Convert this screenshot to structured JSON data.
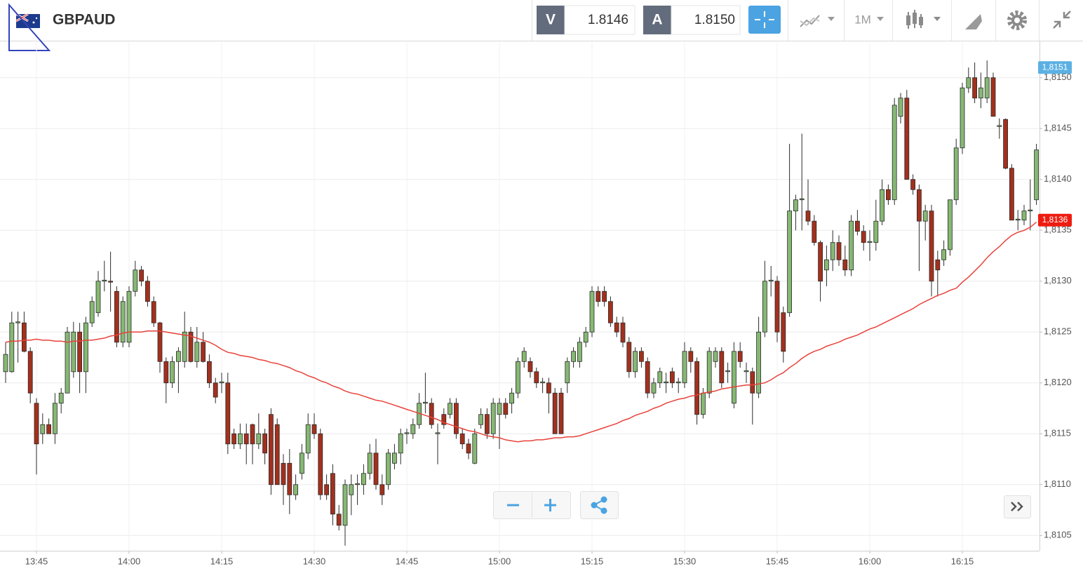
{
  "toolbar": {
    "symbol": "GBPAUD",
    "bid_label": "V",
    "bid": "1.8146",
    "ask_label": "A",
    "ask": "1.8150",
    "timeframe": "1M"
  },
  "chart_data": {
    "type": "candlestick",
    "up_color": "#86b873",
    "down_color": "#a3301d",
    "outline_color": "#2b2b2b",
    "grid": true,
    "ylim": [
      1.81035,
      1.81535
    ],
    "yticks": [
      {
        "value": 1.8105,
        "label": "1,8105"
      },
      {
        "value": 1.811,
        "label": "1,8110"
      },
      {
        "value": 1.8115,
        "label": "1,8115"
      },
      {
        "value": 1.812,
        "label": "1,8120"
      },
      {
        "value": 1.8125,
        "label": "1,8125"
      },
      {
        "value": 1.813,
        "label": "1,8130"
      },
      {
        "value": 1.8135,
        "label": "1,8135"
      },
      {
        "value": 1.814,
        "label": "1,8140"
      },
      {
        "value": 1.8145,
        "label": "1,8145"
      },
      {
        "value": 1.815,
        "label": "1,8150"
      }
    ],
    "xticks": [
      "13:45",
      "14:00",
      "14:15",
      "14:30",
      "14:45",
      "15:00",
      "15:15",
      "15:30",
      "15:45",
      "16:00",
      "16:15"
    ],
    "x": [
      "13:40",
      "13:41",
      "13:42",
      "13:43",
      "13:44",
      "13:45",
      "13:46",
      "13:47",
      "13:48",
      "13:49",
      "13:50",
      "13:51",
      "13:52",
      "13:53",
      "13:54",
      "13:55",
      "13:56",
      "13:57",
      "13:58",
      "13:59",
      "14:00",
      "14:01",
      "14:02",
      "14:03",
      "14:04",
      "14:05",
      "14:06",
      "14:07",
      "14:08",
      "14:09",
      "14:10",
      "14:11",
      "14:12",
      "14:13",
      "14:14",
      "14:15",
      "14:16",
      "14:17",
      "14:18",
      "14:19",
      "14:20",
      "14:21",
      "14:22",
      "14:23",
      "14:24",
      "14:25",
      "14:26",
      "14:27",
      "14:28",
      "14:29",
      "14:30",
      "14:31",
      "14:32",
      "14:33",
      "14:34",
      "14:35",
      "14:36",
      "14:37",
      "14:38",
      "14:39",
      "14:40",
      "14:41",
      "14:42",
      "14:43",
      "14:44",
      "14:45",
      "14:46",
      "14:47",
      "14:48",
      "14:49",
      "14:50",
      "14:51",
      "14:52",
      "14:53",
      "14:54",
      "14:55",
      "14:56",
      "14:57",
      "14:58",
      "14:59",
      "15:00",
      "15:01",
      "15:02",
      "15:03",
      "15:04",
      "15:05",
      "15:06",
      "15:07",
      "15:08",
      "15:09",
      "15:10",
      "15:11",
      "15:12",
      "15:13",
      "15:14",
      "15:15",
      "15:16",
      "15:17",
      "15:18",
      "15:19",
      "15:20",
      "15:21",
      "15:22",
      "15:23",
      "15:24",
      "15:25",
      "15:26",
      "15:27",
      "15:28",
      "15:29",
      "15:30",
      "15:31",
      "15:32",
      "15:33",
      "15:34",
      "15:35",
      "15:36",
      "15:37",
      "15:38",
      "15:39",
      "15:40",
      "15:41",
      "15:42",
      "15:43",
      "15:44",
      "15:45",
      "15:46",
      "15:47",
      "15:48",
      "15:49",
      "15:50",
      "15:51",
      "15:52",
      "15:53",
      "15:54",
      "15:55",
      "15:56",
      "15:57",
      "15:58",
      "15:59",
      "16:00",
      "16:01",
      "16:02",
      "16:03",
      "16:04",
      "16:05",
      "16:06",
      "16:07",
      "16:08",
      "16:09",
      "16:10",
      "16:11",
      "16:12",
      "16:13",
      "16:14",
      "16:15",
      "16:16",
      "16:17",
      "16:18",
      "16:19",
      "16:20",
      "16:21",
      "16:22",
      "16:23",
      "16:24",
      "16:25",
      "16:26",
      "16:27"
    ],
    "open": [
      1.81211,
      1.81211,
      1.81259,
      1.81259,
      1.81231,
      1.8118,
      1.8115,
      1.81159,
      1.8115,
      1.8118,
      1.8119,
      1.81211,
      1.8125,
      1.81211,
      1.81259,
      1.81269,
      1.813,
      1.813,
      1.8129,
      1.8124,
      1.8124,
      1.8129,
      1.81311,
      1.813,
      1.8128,
      1.81259,
      1.81221,
      1.812,
      1.81221,
      1.81221,
      1.8125,
      1.81221,
      1.8124,
      1.81221,
      1.812,
      1.812,
      1.812,
      1.8115,
      1.8114,
      1.8115,
      1.81159,
      1.8114,
      1.8115,
      1.81169,
      1.81159,
      1.81121,
      1.81121,
      1.8109,
      1.81111,
      1.81131,
      1.81159,
      1.8115,
      1.811,
      1.81111,
      1.81071,
      1.8106,
      1.8109,
      1.811,
      1.811,
      1.81111,
      1.81131,
      1.811,
      1.811,
      1.81121,
      1.81131,
      1.8115,
      1.8115,
      1.81159,
      1.8118,
      1.8118,
      1.8115,
      1.81169,
      1.81169,
      1.8118,
      1.8115,
      1.8114,
      1.81121,
      1.81159,
      1.81169,
      1.8115,
      1.81169,
      1.8118,
      1.8118,
      1.8119,
      1.81221,
      1.81221,
      1.81211,
      1.812,
      1.812,
      1.8119,
      1.8119,
      1.812,
      1.81221,
      1.81221,
      1.8124,
      1.8125,
      1.8129,
      1.8129,
      1.8128,
      1.81259,
      1.81259,
      1.8124,
      1.81211,
      1.81231,
      1.81221,
      1.8119,
      1.812,
      1.812,
      1.81211,
      1.812,
      1.812,
      1.81231,
      1.81221,
      1.81169,
      1.8119,
      1.81221,
      1.81231,
      1.81211,
      1.8118,
      1.81231,
      1.81211,
      1.81211,
      1.8119,
      1.8125,
      1.813,
      1.813,
      1.81269,
      1.81269,
      1.81369,
      1.8138,
      1.81369,
      1.81359,
      1.81338,
      1.81311,
      1.81321,
      1.81338,
      1.81321,
      1.81311,
      1.81359,
      1.81349,
      1.81338,
      1.81338,
      1.81359,
      1.8139,
      1.8138,
      1.81462,
      1.8148,
      1.814,
      1.8139,
      1.81359,
      1.81369,
      1.81321,
      1.81321,
      1.81331,
      1.8138,
      1.81431,
      1.8149,
      1.815,
      1.8148,
      1.8148,
      1.815,
      1.81452,
      1.81459,
      1.81411,
      1.8136,
      1.8136,
      1.81369,
      1.8138
    ],
    "high": [
      1.8124,
      1.8127,
      1.8127,
      1.8127,
      1.81235,
      1.81185,
      1.8117,
      1.81165,
      1.8119,
      1.81195,
      1.81255,
      1.8126,
      1.81259,
      1.81265,
      1.81285,
      1.8131,
      1.8132,
      1.81329,
      1.81295,
      1.81285,
      1.81295,
      1.8132,
      1.81315,
      1.81305,
      1.81285,
      1.8126,
      1.81225,
      1.81226,
      1.81235,
      1.8127,
      1.81255,
      1.81255,
      1.8125,
      1.81228,
      1.81205,
      1.8121,
      1.8121,
      1.81155,
      1.8116,
      1.8116,
      1.8116,
      1.8117,
      1.81155,
      1.81175,
      1.81165,
      1.8113,
      1.81135,
      1.8111,
      1.8114,
      1.8117,
      1.8117,
      1.81155,
      1.8111,
      1.8112,
      1.8108,
      1.81105,
      1.8111,
      1.8111,
      1.8112,
      1.8114,
      1.81145,
      1.8111,
      1.81135,
      1.8114,
      1.81155,
      1.81155,
      1.81165,
      1.8119,
      1.8121,
      1.81185,
      1.8116,
      1.81175,
      1.81185,
      1.81185,
      1.81155,
      1.81145,
      1.81155,
      1.81175,
      1.81175,
      1.81185,
      1.81185,
      1.81185,
      1.81195,
      1.81225,
      1.81235,
      1.81225,
      1.81215,
      1.81205,
      1.81205,
      1.81195,
      1.81195,
      1.81225,
      1.81235,
      1.81245,
      1.81255,
      1.81295,
      1.81295,
      1.81295,
      1.81285,
      1.81265,
      1.81265,
      1.81245,
      1.81235,
      1.81235,
      1.81225,
      1.81205,
      1.81215,
      1.8121,
      1.81215,
      1.81205,
      1.8124,
      1.81235,
      1.81225,
      1.81195,
      1.81235,
      1.81235,
      1.81235,
      1.8122,
      1.8124,
      1.8124,
      1.8122,
      1.81215,
      1.81265,
      1.8132,
      1.81315,
      1.81305,
      1.81275,
      1.81435,
      1.81385,
      1.81445,
      1.814,
      1.81365,
      1.8134,
      1.81335,
      1.8135,
      1.81345,
      1.81335,
      1.81365,
      1.8137,
      1.81355,
      1.8135,
      1.8138,
      1.814,
      1.81395,
      1.8148,
      1.81485,
      1.81488,
      1.81405,
      1.81395,
      1.81375,
      1.81375,
      1.8133,
      1.8134,
      1.8138,
      1.8144,
      1.81495,
      1.8151,
      1.81515,
      1.81505,
      1.81517,
      1.81505,
      1.8146,
      1.8146,
      1.81415,
      1.8137,
      1.81375,
      1.814,
      1.81435
    ],
    "low": [
      1.812,
      1.8121,
      1.8122,
      1.8123,
      1.8118,
      1.8111,
      1.8114,
      1.8115,
      1.8114,
      1.8117,
      1.8119,
      1.81205,
      1.8119,
      1.8119,
      1.81255,
      1.81265,
      1.8129,
      1.8127,
      1.81235,
      1.81235,
      1.81235,
      1.81285,
      1.81295,
      1.81275,
      1.81255,
      1.8121,
      1.8118,
      1.81195,
      1.8119,
      1.81215,
      1.8122,
      1.81215,
      1.8122,
      1.81195,
      1.8118,
      1.8119,
      1.8113,
      1.81135,
      1.81135,
      1.8112,
      1.8112,
      1.81135,
      1.8112,
      1.8109,
      1.811,
      1.8108,
      1.81071,
      1.81085,
      1.81105,
      1.81125,
      1.81145,
      1.81085,
      1.81085,
      1.8106,
      1.81055,
      1.8104,
      1.8107,
      1.8108,
      1.8109,
      1.81105,
      1.81095,
      1.8108,
      1.81095,
      1.81115,
      1.8112,
      1.8114,
      1.81145,
      1.81155,
      1.8117,
      1.81155,
      1.8112,
      1.81155,
      1.81165,
      1.81145,
      1.81135,
      1.81125,
      1.8112,
      1.81155,
      1.81145,
      1.81145,
      1.81135,
      1.81165,
      1.8117,
      1.81185,
      1.81215,
      1.81205,
      1.81195,
      1.8119,
      1.8117,
      1.8115,
      1.8115,
      1.8119,
      1.81215,
      1.81215,
      1.81235,
      1.81245,
      1.81275,
      1.81275,
      1.81255,
      1.81245,
      1.81235,
      1.81205,
      1.81205,
      1.81215,
      1.81185,
      1.81185,
      1.81195,
      1.8119,
      1.81195,
      1.8119,
      1.81195,
      1.8121,
      1.81159,
      1.81165,
      1.81185,
      1.81215,
      1.81195,
      1.812,
      1.81175,
      1.81215,
      1.812,
      1.81159,
      1.81185,
      1.81245,
      1.81285,
      1.8124,
      1.8122,
      1.81265,
      1.8135,
      1.8135,
      1.81355,
      1.81335,
      1.8128,
      1.81295,
      1.8131,
      1.81315,
      1.81305,
      1.81305,
      1.81345,
      1.8133,
      1.8132,
      1.8133,
      1.81355,
      1.81375,
      1.81375,
      1.81455,
      1.814,
      1.81385,
      1.8131,
      1.8134,
      1.81285,
      1.81285,
      1.81315,
      1.81325,
      1.81375,
      1.81425,
      1.81485,
      1.81475,
      1.8147,
      1.81475,
      1.81462,
      1.8144,
      1.8141,
      1.8136,
      1.8135,
      1.81355,
      1.8135,
      1.81375
    ],
    "close": [
      1.81228,
      1.81259,
      1.8126,
      1.81231,
      1.8119,
      1.8114,
      1.81159,
      1.8115,
      1.8118,
      1.8119,
      1.8125,
      1.8125,
      1.81211,
      1.81259,
      1.8128,
      1.813,
      1.81301,
      1.81299,
      1.8124,
      1.8128,
      1.8129,
      1.81311,
      1.813,
      1.8128,
      1.81259,
      1.81221,
      1.812,
      1.81221,
      1.81231,
      1.8125,
      1.81221,
      1.8124,
      1.81221,
      1.812,
      1.81186,
      1.81201,
      1.8114,
      1.8114,
      1.8115,
      1.8114,
      1.8114,
      1.8115,
      1.81131,
      1.811,
      1.811,
      1.811,
      1.8109,
      1.811,
      1.81131,
      1.81159,
      1.8115,
      1.8109,
      1.8109,
      1.81071,
      1.8106,
      1.811,
      1.811,
      1.81101,
      1.81111,
      1.81131,
      1.811,
      1.8109,
      1.81131,
      1.81131,
      1.8115,
      1.81151,
      1.81159,
      1.8118,
      1.81181,
      1.81159,
      1.81151,
      1.81159,
      1.8118,
      1.8115,
      1.8114,
      1.81131,
      1.8115,
      1.81169,
      1.8115,
      1.8118,
      1.8118,
      1.81169,
      1.8119,
      1.81221,
      1.81231,
      1.81211,
      1.812,
      1.81201,
      1.8119,
      1.8115,
      1.8115,
      1.81221,
      1.81231,
      1.8124,
      1.8125,
      1.8129,
      1.8128,
      1.8128,
      1.81259,
      1.8125,
      1.8124,
      1.81211,
      1.81231,
      1.81221,
      1.8119,
      1.812,
      1.81211,
      1.81201,
      1.812,
      1.81201,
      1.81231,
      1.81221,
      1.81169,
      1.8119,
      1.81231,
      1.81231,
      1.812,
      1.81212,
      1.81231,
      1.81221,
      1.81212,
      1.8119,
      1.8125,
      1.813,
      1.81301,
      1.8125,
      1.81231,
      1.81369,
      1.8138,
      1.81381,
      1.81359,
      1.81338,
      1.813,
      1.81321,
      1.81338,
      1.81321,
      1.81311,
      1.81359,
      1.81349,
      1.81338,
      1.81339,
      1.81359,
      1.8139,
      1.8138,
      1.81473,
      1.8148,
      1.814,
      1.8139,
      1.81359,
      1.81369,
      1.813,
      1.81311,
      1.81331,
      1.8138,
      1.81431,
      1.8149,
      1.815,
      1.8148,
      1.8149,
      1.815,
      1.81462,
      1.81453,
      1.81411,
      1.8136,
      1.81361,
      1.81369,
      1.8137,
      1.81429
    ],
    "ma": {
      "color": "#e8423a",
      "values": [
        1.8124,
        1.81241,
        1.81241,
        1.81242,
        1.81242,
        1.81243,
        1.81242,
        1.81242,
        1.81241,
        1.81241,
        1.8124,
        1.81241,
        1.81241,
        1.81242,
        1.81242,
        1.81243,
        1.81244,
        1.81246,
        1.81247,
        1.81249,
        1.8125,
        1.8125,
        1.8125,
        1.81251,
        1.81251,
        1.81251,
        1.8125,
        1.81249,
        1.81248,
        1.81247,
        1.81246,
        1.81244,
        1.81242,
        1.8124,
        1.81237,
        1.81233,
        1.8123,
        1.81229,
        1.81227,
        1.81226,
        1.81225,
        1.81223,
        1.81222,
        1.8122,
        1.81219,
        1.81217,
        1.81215,
        1.81212,
        1.8121,
        1.81207,
        1.81205,
        1.81202,
        1.812,
        1.81197,
        1.81195,
        1.81192,
        1.8119,
        1.81189,
        1.81187,
        1.81185,
        1.81183,
        1.81182,
        1.8118,
        1.81178,
        1.81176,
        1.81174,
        1.81172,
        1.8117,
        1.81168,
        1.81166,
        1.81164,
        1.81161,
        1.81159,
        1.81157,
        1.81155,
        1.81153,
        1.81152,
        1.8115,
        1.81148,
        1.81147,
        1.81146,
        1.81144,
        1.81143,
        1.81142,
        1.81143,
        1.81143,
        1.81144,
        1.81144,
        1.81145,
        1.81146,
        1.81146,
        1.81147,
        1.81147,
        1.81148,
        1.8115,
        1.81152,
        1.81154,
        1.81156,
        1.81158,
        1.8116,
        1.81163,
        1.81165,
        1.81168,
        1.8117,
        1.81172,
        1.81175,
        1.81177,
        1.8118,
        1.81182,
        1.81184,
        1.81185,
        1.81187,
        1.81188,
        1.8119,
        1.81191,
        1.81192,
        1.81194,
        1.81195,
        1.81196,
        1.81197,
        1.81198,
        1.81198,
        1.81199,
        1.812,
        1.81203,
        1.81207,
        1.8121,
        1.81215,
        1.81219,
        1.81224,
        1.81228,
        1.81231,
        1.81233,
        1.81236,
        1.81238,
        1.8124,
        1.81243,
        1.81245,
        1.81247,
        1.8125,
        1.81253,
        1.81255,
        1.81258,
        1.81261,
        1.81264,
        1.81267,
        1.8127,
        1.81273,
        1.81277,
        1.8128,
        1.81283,
        1.81286,
        1.81288,
        1.81291,
        1.81293,
        1.81299,
        1.81304,
        1.8131,
        1.81316,
        1.81323,
        1.81329,
        1.81334,
        1.8134,
        1.81345,
        1.81348,
        1.8135,
        1.81353,
        1.81358
      ]
    },
    "price_labels": [
      {
        "value": 1.8151,
        "label": "1,8151",
        "color": "#5bb0e3"
      },
      {
        "value": 1.8136,
        "label": "1,8136",
        "color": "#ee1c10"
      }
    ]
  }
}
